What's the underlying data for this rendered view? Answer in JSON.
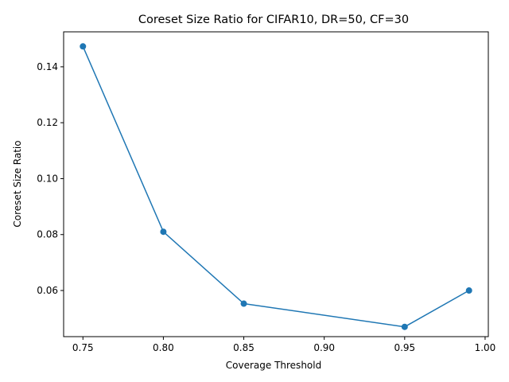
{
  "chart_data": {
    "type": "line",
    "title": "Coreset Size Ratio for CIFAR10, DR=50, CF=30",
    "xlabel": "Coverage Threshold",
    "ylabel": "Coreset Size Ratio",
    "x": [
      0.75,
      0.8,
      0.85,
      0.95,
      0.99
    ],
    "series": [
      {
        "values": [
          0.1473,
          0.081,
          0.0553,
          0.047,
          0.06
        ]
      }
    ],
    "xticks": [
      "0.75",
      "0.80",
      "0.85",
      "0.90",
      "0.95",
      "1.00"
    ],
    "yticks": [
      "0.06",
      "0.08",
      "0.10",
      "0.12",
      "0.14"
    ],
    "xlim": [
      0.738,
      1.002
    ],
    "ylim": [
      0.0435,
      0.1525
    ],
    "grid": false,
    "line_color": "#1f77b4",
    "marker": "circle"
  }
}
